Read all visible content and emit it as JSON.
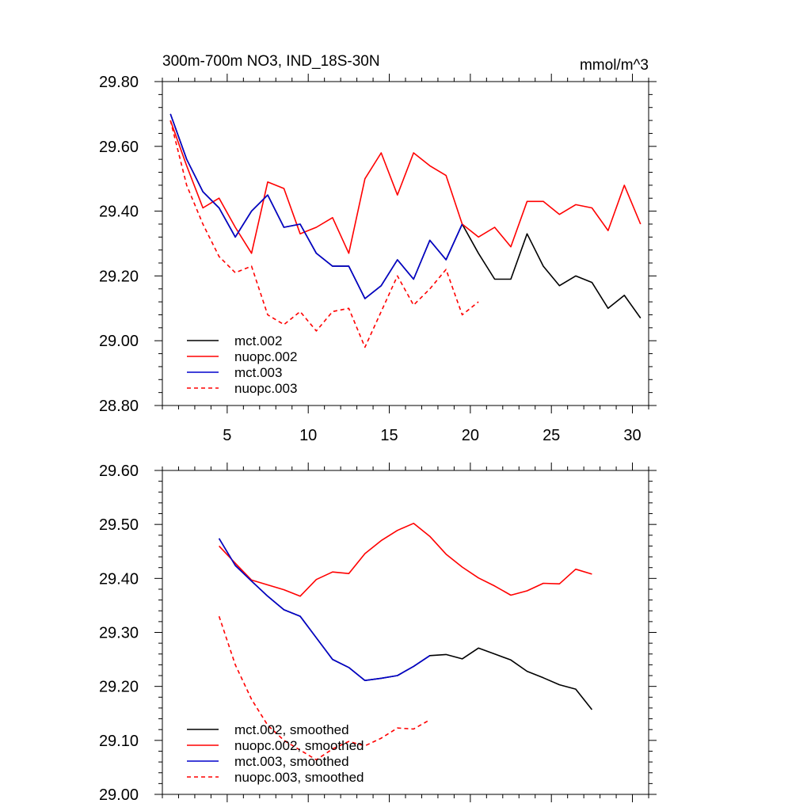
{
  "chart_data": [
    {
      "type": "line",
      "title": "300m-700m NO3, IND_18S-30N",
      "units": "mmol/m^3",
      "xlim": [
        1,
        31
      ],
      "ylim": [
        28.8,
        29.8
      ],
      "x_ticks": [
        5,
        10,
        15,
        20,
        25,
        30
      ],
      "y_ticks": [
        "28.80",
        "29.00",
        "29.20",
        "29.40",
        "29.60",
        "29.80"
      ],
      "legend_position": "bottom-left",
      "series": [
        {
          "name": "mct.002",
          "color": "#000000",
          "dash": "solid",
          "x": [
            1.5,
            2.5,
            3.5,
            4.5,
            5.5,
            6.5,
            7.5,
            8.5,
            9.5,
            10.5,
            11.5,
            12.5,
            13.5,
            14.5,
            15.5,
            16.5,
            17.5,
            18.5,
            19.5,
            20.5,
            21.5,
            22.5,
            23.5,
            24.5,
            25.5,
            26.5,
            27.5,
            28.5,
            29.5,
            30.5
          ],
          "values": [
            29.7,
            29.56,
            29.46,
            29.41,
            29.32,
            29.4,
            29.45,
            29.35,
            29.36,
            29.27,
            29.23,
            29.23,
            29.13,
            29.17,
            29.25,
            29.19,
            29.31,
            29.25,
            29.36,
            29.27,
            29.19,
            29.19,
            29.33,
            29.23,
            29.17,
            29.2,
            29.18,
            29.1,
            29.14,
            29.07
          ]
        },
        {
          "name": "nuopc.002",
          "color": "#ff0000",
          "dash": "solid",
          "x": [
            1.5,
            2.5,
            3.5,
            4.5,
            5.5,
            6.5,
            7.5,
            8.5,
            9.5,
            10.5,
            11.5,
            12.5,
            13.5,
            14.5,
            15.5,
            16.5,
            17.5,
            18.5,
            19.5,
            20.5,
            21.5,
            22.5,
            23.5,
            24.5,
            25.5,
            26.5,
            27.5,
            28.5,
            29.5,
            30.5
          ],
          "values": [
            29.68,
            29.54,
            29.41,
            29.44,
            29.35,
            29.27,
            29.49,
            29.47,
            29.33,
            29.35,
            29.38,
            29.27,
            29.5,
            29.58,
            29.45,
            29.58,
            29.54,
            29.51,
            29.36,
            29.32,
            29.35,
            29.29,
            29.43,
            29.43,
            29.39,
            29.42,
            29.41,
            29.34,
            29.48,
            29.36
          ]
        },
        {
          "name": "mct.003",
          "color": "#0000cc",
          "dash": "solid",
          "x": [
            1.5,
            2.5,
            3.5,
            4.5,
            5.5,
            6.5,
            7.5,
            8.5,
            9.5,
            10.5,
            11.5,
            12.5,
            13.5,
            14.5,
            15.5,
            16.5,
            17.5,
            18.5,
            19.5
          ],
          "values": [
            29.7,
            29.56,
            29.46,
            29.41,
            29.32,
            29.4,
            29.45,
            29.35,
            29.36,
            29.27,
            29.23,
            29.23,
            29.13,
            29.17,
            29.25,
            29.19,
            29.31,
            29.25,
            29.36
          ]
        },
        {
          "name": "nuopc.003",
          "color": "#ff0000",
          "dash": "dashed",
          "x": [
            1.5,
            2.5,
            3.5,
            4.5,
            5.5,
            6.5,
            7.5,
            8.5,
            9.5,
            10.5,
            11.5,
            12.5,
            13.5,
            14.5,
            15.5,
            16.5,
            17.5,
            18.5,
            19.5,
            20.5
          ],
          "values": [
            29.68,
            29.48,
            29.36,
            29.26,
            29.21,
            29.23,
            29.08,
            29.05,
            29.09,
            29.03,
            29.09,
            29.1,
            28.98,
            29.09,
            29.2,
            29.11,
            29.16,
            29.22,
            29.08,
            29.12
          ]
        }
      ]
    },
    {
      "type": "line",
      "title": "",
      "xlim": [
        1,
        31
      ],
      "ylim": [
        29.0,
        29.6
      ],
      "x_ticks": [
        5,
        10,
        15,
        20,
        25,
        30
      ],
      "y_ticks": [
        "29.00",
        "29.10",
        "29.20",
        "29.30",
        "29.40",
        "29.50",
        "29.60"
      ],
      "legend_position": "bottom-left",
      "series": [
        {
          "name": "mct.002, smoothed",
          "color": "#000000",
          "dash": "solid",
          "x": [
            4.5,
            5.5,
            6.5,
            7.5,
            8.5,
            9.5,
            10.5,
            11.5,
            12.5,
            13.5,
            14.5,
            15.5,
            16.5,
            17.5,
            18.5,
            19.5,
            20.5,
            21.5,
            22.5,
            23.5,
            24.5,
            25.5,
            26.5,
            27.5
          ],
          "values": [
            29.474,
            29.424,
            29.395,
            29.367,
            29.342,
            29.33,
            29.29,
            29.25,
            29.235,
            29.211,
            29.215,
            29.22,
            29.237,
            29.257,
            29.259,
            29.251,
            29.271,
            29.26,
            29.249,
            29.228,
            29.216,
            29.203,
            29.195,
            29.157
          ]
        },
        {
          "name": "nuopc.002, smoothed",
          "color": "#ff0000",
          "dash": "solid",
          "x": [
            4.5,
            5.5,
            6.5,
            7.5,
            8.5,
            9.5,
            10.5,
            11.5,
            12.5,
            13.5,
            14.5,
            15.5,
            16.5,
            17.5,
            18.5,
            19.5,
            20.5,
            21.5,
            22.5,
            23.5,
            24.5,
            25.5,
            26.5,
            27.5
          ],
          "values": [
            29.46,
            29.428,
            29.397,
            29.388,
            29.379,
            29.367,
            29.398,
            29.412,
            29.409,
            29.446,
            29.47,
            29.489,
            29.502,
            29.478,
            29.445,
            29.421,
            29.401,
            29.386,
            29.369,
            29.377,
            29.391,
            29.39,
            29.417,
            29.408
          ]
        },
        {
          "name": "mct.003, smoothed",
          "color": "#0000cc",
          "dash": "solid",
          "x": [
            4.5,
            5.5,
            6.5,
            7.5,
            8.5,
            9.5,
            10.5,
            11.5,
            12.5,
            13.5,
            14.5,
            15.5,
            16.5,
            17.5
          ],
          "values": [
            29.474,
            29.424,
            29.395,
            29.367,
            29.342,
            29.33,
            29.29,
            29.25,
            29.235,
            29.211,
            29.215,
            29.22,
            29.237,
            29.257
          ]
        },
        {
          "name": "nuopc.003, smoothed",
          "color": "#ff0000",
          "dash": "dashed",
          "x": [
            4.5,
            5.5,
            6.5,
            7.5,
            8.5,
            9.5,
            10.5,
            11.5,
            12.5,
            13.5,
            14.5,
            15.5,
            16.5,
            17.5
          ],
          "values": [
            29.33,
            29.24,
            29.176,
            29.128,
            29.1,
            29.082,
            29.064,
            29.084,
            29.098,
            29.09,
            29.104,
            29.123,
            29.121,
            29.138
          ]
        }
      ]
    }
  ]
}
